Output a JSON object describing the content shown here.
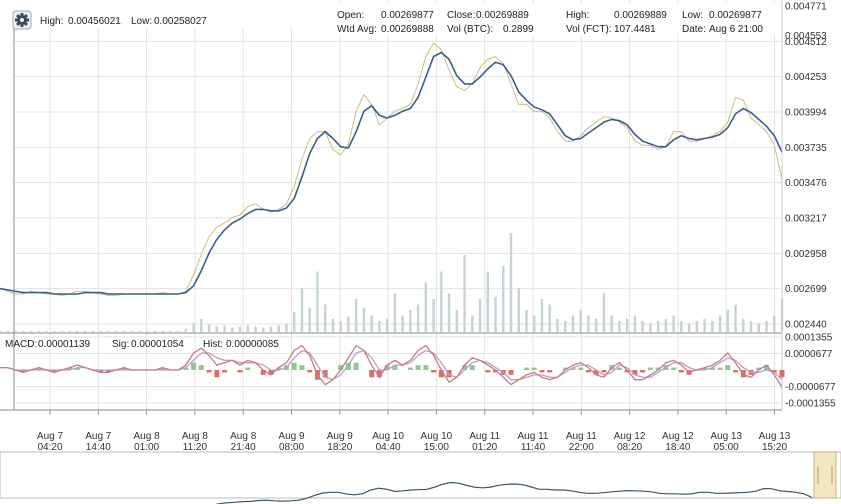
{
  "header": {
    "settings_icon": "gear-icon",
    "high_label": "High:",
    "high_value": "0.00456021",
    "low_label": "Low:",
    "low_value": "0.00258027"
  },
  "ohlc": {
    "open_label": "Open:",
    "open_value": "0.00269877",
    "close_label": "Close:",
    "close_value": "0.00269889",
    "high_label": "High:",
    "high_value": "0.00269889",
    "low_label": "Low:",
    "low_value": "0.00269877",
    "wtd_label": "Wtd Avg:",
    "wtd_value": "0.00269888",
    "volb_label": "Vol (BTC):",
    "volb_value": "0.2899",
    "volf_label": "Vol (FCT):",
    "volf_value": "107.4481",
    "date_label": "Date:",
    "date_value": "Aug 6 21:00"
  },
  "colors": {
    "grid": "#e3e3e3",
    "price": "#c9c07a",
    "ma": "#3a5a99",
    "volume": "#c5d3d6",
    "macd": "#c87a86",
    "signal": "#b7a0cc",
    "hist_pos": "#7cc07c",
    "hist_neg": "#d05a4a",
    "nav": "#3b5566",
    "nav_handle": "#f3e6c0"
  },
  "chart_data": [
    {
      "type": "line",
      "title": "",
      "y_tick_labels": [
        "0.004771",
        "0.004512",
        "0.004253",
        "0.003994",
        "0.003735",
        "0.003476",
        "0.003217",
        "0.002958",
        "0.002699",
        "0.002440"
      ],
      "extra_labels": [
        {
          "text": "0.004553",
          "value": 0.004553
        }
      ],
      "ylim": [
        0.00244,
        0.004771
      ],
      "x_tick_labels": [
        [
          "Aug 7",
          "04:20"
        ],
        [
          "Aug 7",
          "14:40"
        ],
        [
          "Aug 8",
          "01:00"
        ],
        [
          "Aug 8",
          "11:20"
        ],
        [
          "Aug 8",
          "21:40"
        ],
        [
          "Aug 9",
          "08:00"
        ],
        [
          "Aug 9",
          "18:20"
        ],
        [
          "Aug 10",
          "04:40"
        ],
        [
          "Aug 10",
          "15:00"
        ],
        [
          "Aug 11",
          "01:20"
        ],
        [
          "Aug 11",
          "11:40"
        ],
        [
          "Aug 11",
          "22:00"
        ],
        [
          "Aug 12",
          "08:20"
        ],
        [
          "Aug 12",
          "18:40"
        ],
        [
          "Aug 13",
          "05:00"
        ],
        [
          "Aug 13",
          "15:20"
        ]
      ],
      "series": [
        {
          "values": [
            0.0027,
            0.00268,
            0.00266,
            0.00266,
            0.00268,
            0.00267,
            0.00266,
            0.00266,
            0.00265,
            0.00266,
            0.00268,
            0.00268,
            0.00267,
            0.00266,
            0.00265,
            0.00265,
            0.00266,
            0.00266,
            0.00266,
            0.00266,
            0.00266,
            0.00267,
            0.00266,
            0.00266,
            0.00268,
            0.0028,
            0.00295,
            0.00308,
            0.00315,
            0.00318,
            0.00322,
            0.00324,
            0.0033,
            0.00332,
            0.00328,
            0.00326,
            0.00328,
            0.00332,
            0.00345,
            0.00365,
            0.0038,
            0.00385,
            0.00385,
            0.00372,
            0.00368,
            0.00376,
            0.004,
            0.00412,
            0.00405,
            0.0039,
            0.00395,
            0.004,
            0.00402,
            0.00405,
            0.0042,
            0.0044,
            0.0045,
            0.00445,
            0.0043,
            0.00418,
            0.00415,
            0.0042,
            0.00432,
            0.00438,
            0.0044,
            0.00435,
            0.0042,
            0.00405,
            0.00405,
            0.004,
            0.004,
            0.00395,
            0.00385,
            0.00378,
            0.00378,
            0.00382,
            0.00388,
            0.00392,
            0.00396,
            0.00395,
            0.00392,
            0.00388,
            0.00378,
            0.00375,
            0.00375,
            0.00372,
            0.00374,
            0.00385,
            0.00385,
            0.00378,
            0.00378,
            0.0038,
            0.00382,
            0.00385,
            0.00392,
            0.0041,
            0.00408,
            0.00395,
            0.0039,
            0.00385,
            0.00375,
            0.0035
          ]
        },
        {
          "values": [
            0.0027,
            0.00269,
            0.00268,
            0.00267,
            0.00267,
            0.00267,
            0.00267,
            0.00266,
            0.00266,
            0.00266,
            0.00266,
            0.00267,
            0.00267,
            0.00267,
            0.00266,
            0.00266,
            0.00266,
            0.00266,
            0.00266,
            0.00266,
            0.00266,
            0.00266,
            0.00266,
            0.00266,
            0.00267,
            0.00272,
            0.00283,
            0.00296,
            0.00306,
            0.00313,
            0.00318,
            0.00321,
            0.00325,
            0.00328,
            0.00328,
            0.00327,
            0.00327,
            0.00329,
            0.00336,
            0.00352,
            0.00369,
            0.0038,
            0.00385,
            0.0038,
            0.00374,
            0.00373,
            0.00385,
            0.004,
            0.00404,
            0.00397,
            0.00395,
            0.00397,
            0.004,
            0.00402,
            0.0041,
            0.00425,
            0.0044,
            0.00443,
            0.00438,
            0.00426,
            0.0042,
            0.0042,
            0.00425,
            0.00431,
            0.00436,
            0.00434,
            0.00426,
            0.00414,
            0.00408,
            0.00403,
            0.00401,
            0.00398,
            0.0039,
            0.00382,
            0.00379,
            0.0038,
            0.00384,
            0.00388,
            0.00392,
            0.00394,
            0.00393,
            0.0039,
            0.00383,
            0.00378,
            0.00376,
            0.00374,
            0.00374,
            0.00379,
            0.00382,
            0.0038,
            0.00379,
            0.0038,
            0.00381,
            0.00383,
            0.00388,
            0.00398,
            0.00402,
            0.00399,
            0.00394,
            0.00389,
            0.00382,
            0.0037
          ]
        }
      ],
      "volume": [
        0.01,
        0.01,
        0.01,
        0.01,
        0.01,
        0.01,
        0.01,
        0.01,
        0.01,
        0.01,
        0.01,
        0.01,
        0.01,
        0.01,
        0.01,
        0.01,
        0.01,
        0.01,
        0.01,
        0.01,
        0.01,
        0.01,
        0.01,
        0.01,
        0.03,
        0.08,
        0.12,
        0.07,
        0.05,
        0.06,
        0.04,
        0.05,
        0.06,
        0.05,
        0.04,
        0.05,
        0.06,
        0.08,
        0.18,
        0.4,
        0.22,
        0.55,
        0.25,
        0.12,
        0.1,
        0.14,
        0.3,
        0.22,
        0.15,
        0.1,
        0.12,
        0.35,
        0.15,
        0.2,
        0.25,
        0.45,
        0.3,
        0.55,
        0.35,
        0.2,
        0.7,
        0.15,
        0.3,
        0.55,
        0.32,
        0.6,
        0.9,
        0.4,
        0.2,
        0.15,
        0.3,
        0.25,
        0.12,
        0.1,
        0.15,
        0.2,
        0.15,
        0.12,
        0.35,
        0.15,
        0.1,
        0.12,
        0.15,
        0.1,
        0.08,
        0.1,
        0.12,
        0.15,
        0.1,
        0.08,
        0.1,
        0.12,
        0.1,
        0.15,
        0.2,
        0.25,
        0.12,
        0.1,
        0.08,
        0.1,
        0.15,
        0.3
      ]
    },
    {
      "type": "line",
      "title": "MACD",
      "readout": {
        "macd_label": "MACD:",
        "macd_value": "0.00001139",
        "sig_label": "Sig:",
        "sig_value": "0.00001054",
        "hist_label": "Hist:",
        "hist_value": "0.00000085"
      },
      "y_tick_labels": [
        "0.0001355",
        "0.0000677",
        "-0.0000677",
        "-0.0001355"
      ],
      "ylim": [
        -0.0001355,
        0.0001355
      ],
      "series": [
        {
          "values": [
            1e-05,
            1e-05,
            0.0,
            -1e-05,
            0.0,
            1e-05,
            0.0,
            -1e-05,
            0.0,
            1e-05,
            2e-05,
            1e-05,
            0.0,
            -1e-05,
            -1e-05,
            0.0,
            1e-05,
            0.0,
            0.0,
            0.0,
            0.0,
            1e-05,
            0.0,
            0.0,
            2e-05,
            7e-05,
            9e-05,
            6e-05,
            2e-05,
            3e-05,
            4e-05,
            2e-05,
            4e-05,
            3e-05,
            0.0,
            -2e-05,
            1e-05,
            3e-05,
            8e-05,
            0.0001,
            6e-05,
            -2e-05,
            -6e-05,
            -4e-05,
            0.0,
            5e-05,
            0.0001,
            8e-05,
            2e-05,
            -3e-05,
            2e-05,
            4e-05,
            2e-05,
            4e-05,
            8e-05,
            0.0001,
            6e-05,
            0.0,
            -5e-05,
            -3e-05,
            2e-05,
            5e-05,
            4e-05,
            2e-05,
            0.0,
            -3e-05,
            -6e-05,
            -4e-05,
            -2e-05,
            -1e-05,
            -3e-05,
            -4e-05,
            -3e-05,
            0.0,
            2e-05,
            3e-05,
            1e-05,
            -2e-05,
            -3e-05,
            1e-05,
            3e-05,
            0.0,
            -4e-05,
            -4e-05,
            -2e-05,
            0.0,
            3e-05,
            4e-05,
            2e-05,
            -1e-05,
            0.0,
            1e-05,
            2e-05,
            4e-05,
            7e-05,
            3e-05,
            -2e-05,
            -3e-05,
            0.0,
            2e-05,
            -2e-05,
            -7e-05
          ]
        },
        {
          "values": [
            1e-05,
            1e-05,
            0.0,
            0.0,
            0.0,
            0.0,
            0.0,
            0.0,
            0.0,
            0.0,
            1e-05,
            1e-05,
            0.0,
            0.0,
            0.0,
            0.0,
            0.0,
            0.0,
            0.0,
            0.0,
            0.0,
            0.0,
            0.0,
            0.0,
            1e-05,
            4e-05,
            7e-05,
            7e-05,
            5e-05,
            4e-05,
            4e-05,
            3e-05,
            3e-05,
            3e-05,
            2e-05,
            0.0,
            0.0,
            1e-05,
            5e-05,
            8e-05,
            7e-05,
            2e-05,
            -3e-05,
            -4e-05,
            -2e-05,
            2e-05,
            7e-05,
            8e-05,
            5e-05,
            0.0,
            0.0,
            2e-05,
            2e-05,
            3e-05,
            6e-05,
            8e-05,
            7e-05,
            3e-05,
            -2e-05,
            -3e-05,
            0.0,
            3e-05,
            4e-05,
            3e-05,
            1e-05,
            -1e-05,
            -4e-05,
            -4e-05,
            -3e-05,
            -2e-05,
            -2e-05,
            -3e-05,
            -3e-05,
            -1e-05,
            1e-05,
            2e-05,
            2e-05,
            0.0,
            -2e-05,
            -1e-05,
            2e-05,
            1e-05,
            -2e-05,
            -3e-05,
            -3e-05,
            -1e-05,
            1e-05,
            3e-05,
            3e-05,
            1e-05,
            0.0,
            0.0,
            1e-05,
            3e-05,
            5e-05,
            4e-05,
            1e-05,
            -1e-05,
            -1e-05,
            0.0,
            -1e-05,
            -4e-05
          ]
        }
      ]
    }
  ]
}
